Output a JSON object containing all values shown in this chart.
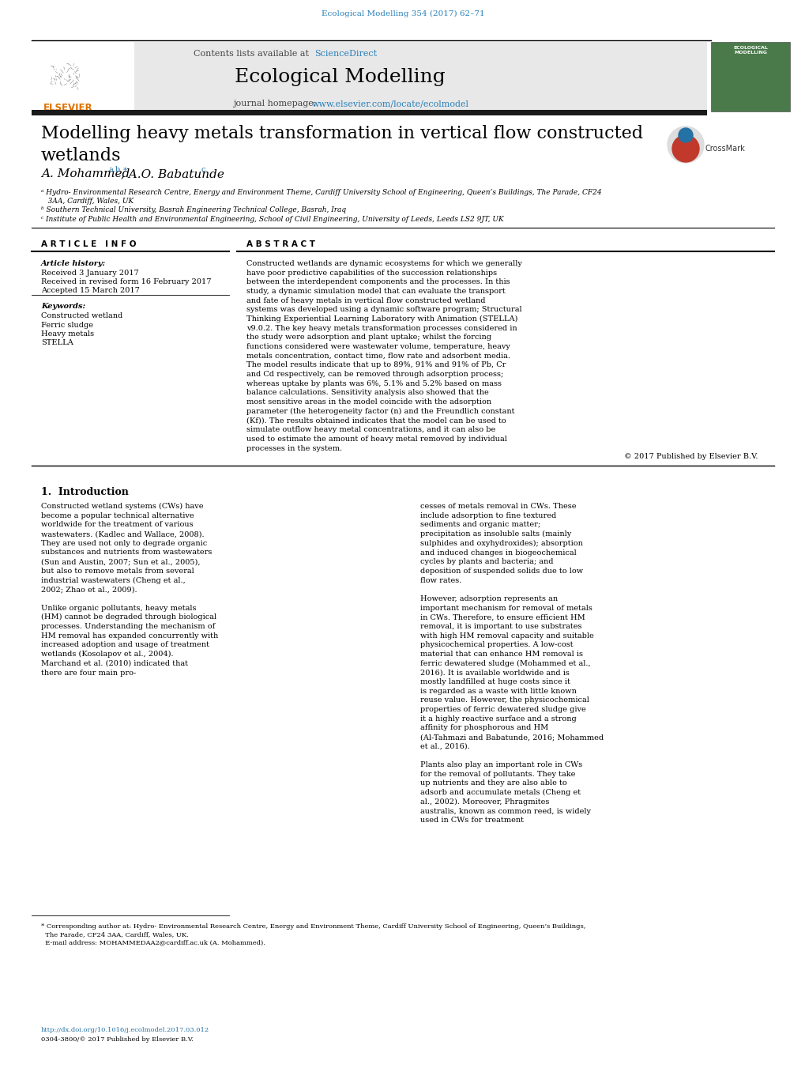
{
  "page_bg": "#ffffff",
  "top_citation": "Ecological Modelling 354 (2017) 62–71",
  "top_citation_color": "#2980b9",
  "journal_title": "Ecological Modelling",
  "contents_text": "Contents lists available at ",
  "sciencedirect_text": "ScienceDirect",
  "sciencedirect_color": "#2980b9",
  "journal_homepage_text": "journal homepage: ",
  "journal_url": "www.elsevier.com/locate/ecolmodel",
  "journal_url_color": "#2980b9",
  "header_bg": "#e8e8e8",
  "dark_bar_color": "#1a1a1a",
  "paper_title": "Modelling heavy metals transformation in vertical flow constructed\nwetlands",
  "authors": "A. Mohammed",
  "authors_superscript": "a,b,∗",
  "authors2": ", A.O. Babatunde",
  "authors2_superscript": "c",
  "affil_a": "ᵃ Hydro- Environmental Research Centre, Energy and Environment Theme, Cardiff University School of Engineering, Queen’s Buildings, The Parade, CF24\n   3AA, Cardiff, Wales, UK",
  "affil_b": "ᵇ Southern Technical University, Basrah Engineering Technical College, Basrah, Iraq",
  "affil_c": "ᶜ Institute of Public Health and Environmental Engineering, School of Civil Engineering, University of Leeds, Leeds LS2 9JT, UK",
  "article_info_header": "A R T I C L E   I N F O",
  "abstract_header": "A B S T R A C T",
  "article_history_label": "Article history:",
  "received": "Received 3 January 2017",
  "received_revised": "Received in revised form 16 February 2017",
  "accepted": "Accepted 15 March 2017",
  "keywords_label": "Keywords:",
  "keywords": [
    "Constructed wetland",
    "Ferric sludge",
    "Heavy metals",
    "STELLA"
  ],
  "abstract_text": "Constructed wetlands are dynamic ecosystems for which we generally have poor predictive capabilities of the succession relationships between the interdependent components and the processes. In this study, a dynamic simulation model that can evaluate the transport and fate of heavy metals in vertical flow constructed wetland systems was developed using a dynamic software program; Structural Thinking Experiential Learning Laboratory with Animation (STELLA) v9.0.2. The key heavy metals transformation processes considered in the study were adsorption and plant uptake; whilst the forcing functions considered were wastewater volume, temperature, heavy metals concentration, contact time, flow rate and adsorbent media. The model results indicate that up to 89%, 91% and 91% of Pb, Cr and Cd respectively, can be removed through adsorption process; whereas uptake by plants was 6%, 5.1% and 5.2% based on mass balance calculations. Sensitivity analysis also showed that the most sensitive areas in the model coincide with the adsorption parameter (the heterogeneity factor (n) and the Freundlich constant (Kf)). The results obtained indicates that the model can be used to simulate outflow heavy metal concentrations, and it can also be used to estimate the amount of heavy metal removed by individual processes in the system.",
  "copyright": "© 2017 Published by Elsevier B.V.",
  "intro_header": "1.  Introduction",
  "intro_col1_text": "Constructed wetland systems (CWs) have become a popular technical alternative worldwide for the treatment of various wastewaters. (Kadlec and Wallace, 2008). They are used not only to degrade organic substances and nutrients from wastewaters (Sun and Austin, 2007; Sun et al., 2005), but also to remove metals from several industrial wastewaters (Cheng et al., 2002; Zhao et al., 2009).\n\nUnlike organic pollutants, heavy metals (HM) cannot be degraded through biological processes. Understanding the mechanism of HM removal has expanded concurrently with increased adoption and usage of treatment wetlands (Kosolapov et al., 2004). Marchand et al. (2010) indicated that there are four main pro-",
  "intro_col2_text": "cesses of metals removal in CWs. These include adsorption to fine textured sediments and organic matter; precipitation as insoluble salts (mainly sulphides and oxyhydroxides); absorption and induced changes in biogeochemical cycles by plants and bacteria; and deposition of suspended solids due to low flow rates.\n\nHowever, adsorption represents an important mechanism for removal of metals in CWs. Therefore, to ensure efficient HM removal, it is important to use substrates with high HM removal capacity and suitable physicochemical properties. A low-cost material that can enhance HM removal is ferric dewatered sludge (Mohammed et al., 2016). It is available worldwide and is mostly landfilled at huge costs since it is regarded as a waste with little known reuse value. However, the physicochemical properties of ferric dewatered sludge give it a highly reactive surface and a strong affinity for phosphorous and HM (Al-Tahmazi and Babatunde, 2016; Mohammed et al., 2016).\n\nPlants also play an important role in CWs for the removal of pollutants. They take up nutrients and they are also able to adsorb and accumulate metals (Cheng et al., 2002). Moreover, Phragmites australis, known as common reed, is widely used in CWs for treatment",
  "footnote_text": "* Corresponding author at: Hydro- Environmental Research Centre, Energy and Environment Theme, Cardiff University School of Engineering, Queen’s Buildings,\n  The Parade, CF24 3AA, Cardiff, Wales, UK.\n  E-mail address: MOHAMMEDAA2@cardiff.ac.uk (A. Mohammed).",
  "doi_text": "http://dx.doi.org/10.1016/j.ecolmodel.2017.03.012",
  "issn_text": "0304-3800/© 2017 Published by Elsevier B.V."
}
